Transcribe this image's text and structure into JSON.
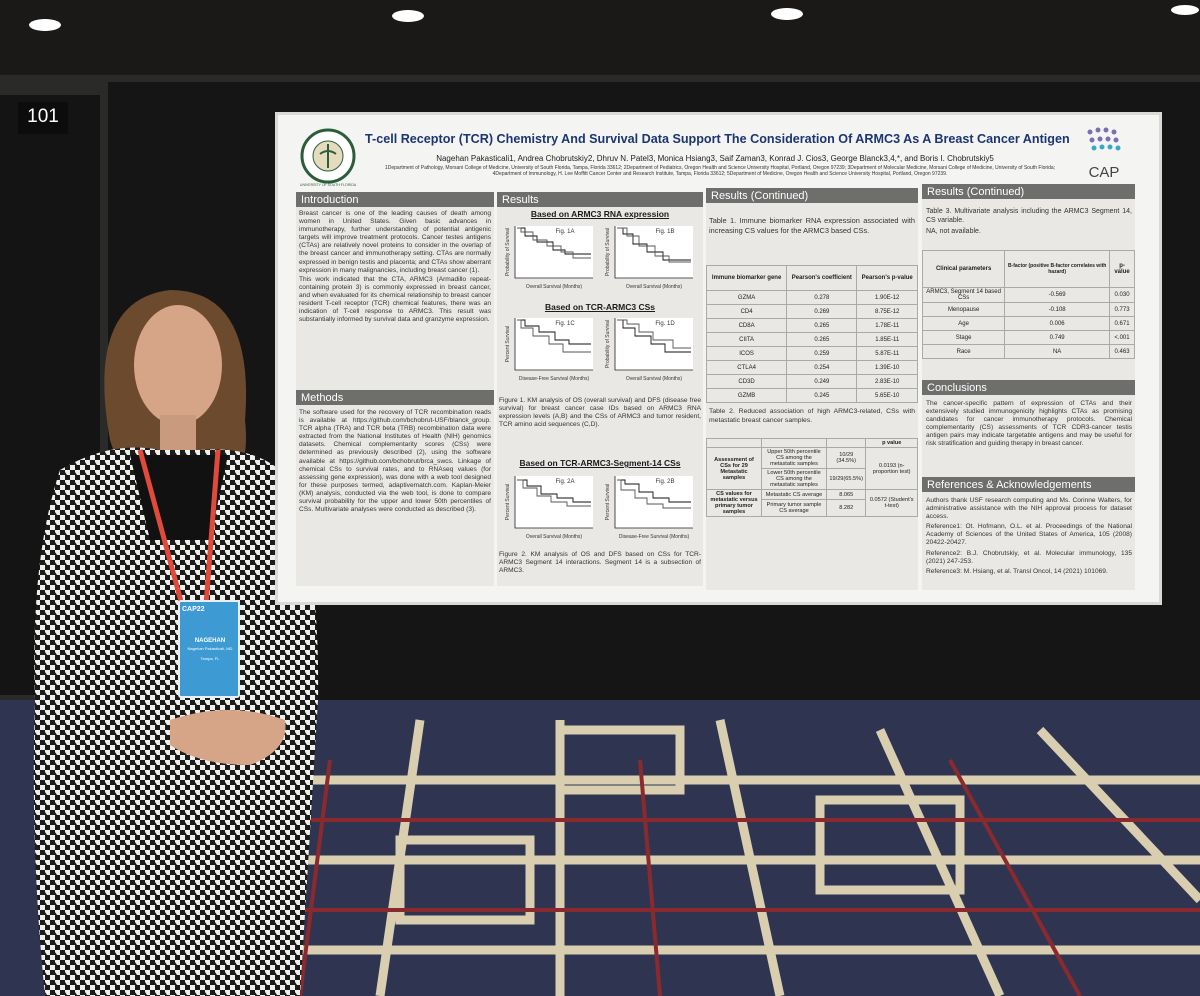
{
  "room_sign": "101",
  "poster": {
    "logo_left_text": "UNIVERSITY OF SOUTH FLORIDA",
    "logo_right_text": "CAP",
    "title": "T-cell Receptor (TCR) Chemistry And Survival Data Support The Consideration Of ARMC3 As A Breast Cancer Antigen",
    "authors": "Nagehan Pakasticali1, Andrea Chobrutskiy2, Dhruv N. Patel3, Monica Hsiang3, Saif Zaman3, Konrad J. Cios3, George Blanck3,4,*, and Boris I. Chobrutskiy5",
    "affiliations": "1Department of Pathology, Morsani College of Medicine, University of South Florida, Tampa, Florida 33612; 2Department of Pediatrics, Oregon Health and Science University Hospital, Portland, Oregon 97239; 3Department of Molecular Medicine, Morsani College of Medicine, University of South Florida; 4Department of Immunology, H. Lee Moffitt Cancer Center and Research Institute, Tampa, Florida 33612; 5Department of Medicine, Oregon Health and Science University Hospital, Portland, Oregon 97239.",
    "introduction": {
      "heading": "Introduction",
      "paragraphs": [
        "Breast cancer is one of the leading causes of death among women in United States. Given basic advances in immunotherapy, further understanding of potential antigenic targets will improve treatment protocols. Cancer testes antigens (CTAs) are relatively novel proteins to consider in the overlap of the breast cancer and immunotherapy setting. CTAs are normally expressed in benign testis and placenta; and CTAs show aberrant expression in many malignancies, including breast cancer (1).",
        "This work indicated that the CTA, ARMC3 (Armadillo repeat-containing protein 3) is commonly expressed in breast cancer, and when evaluated for its chemical relationship to breast cancer resident T-cell receptor (TCR) chemical features, there was an indication of T-cell response to ARMC3. This result was substantially informed by survival data and granzyme expression."
      ]
    },
    "methods": {
      "heading": "Methods",
      "text": "The software used for the recovery of TCR recombination reads is available at https://github.com/bchobrut-USF/blanck_group. TCR alpha (TRA) and TCR beta (TRB) recombination data were extracted from the National Institutes of Health (NIH) genomics datasets. Chemical complementarity scores (CSs) were determined as previously described (2), using the software available at https://github.com/bchobrut/brca_swcs. Linkage of chemical CSs to survival rates, and to RNAseq values (for assessing gene expression), was done with a web tool designed for these purposes termed, adaptivematch.com. Kaplan-Meier (KM) analysis, conducted via the web tool, is done to compare survival probability for the upper and lower 50th percentiles of CSs. Multivariate analyses were conducted as described (3)."
    },
    "results": {
      "heading": "Results",
      "subheadings": [
        "Based on ARMC3 RNA expression",
        "Based on TCR-ARMC3 CSs",
        "Based on TCR-ARMC3-Segment-14 CSs"
      ],
      "figures": [
        {
          "label": "Fig. 1A",
          "x_label": "Overall Survival (Months)",
          "y_label": "Probability of Survival"
        },
        {
          "label": "Fig. 1B",
          "x_label": "Overall Survival (Months)",
          "y_label": "Probability of Survival"
        },
        {
          "label": "Fig. 1C",
          "x_label": "Disease-Free Survival (Months)",
          "y_label": "Percent Survival"
        },
        {
          "label": "Fig. 1D",
          "x_label": "Overall Survival (Months)",
          "y_label": "Probability of Survival"
        },
        {
          "label": "Fig. 2A",
          "x_label": "Overall Survival (Months)",
          "y_label": "Percent Survival"
        },
        {
          "label": "Fig. 2B",
          "x_label": "Disease-Free Survival (Months)",
          "y_label": "Percent Survival"
        }
      ],
      "figure_1_caption": "Figure 1. KM analysis of OS (overall survival) and DFS (disease free survival) for breast cancer case IDs based on ARMC3 RNA expression levels (A,B) and the CSs of ARMC3 and tumor resident, TCR amino acid sequences (C,D).",
      "figure_2_caption": "Figure 2. KM analysis of OS and DFS based on CSs for TCR-ARMC3 Segment 14 interactions. Segment 14 is a subsection of ARMC3."
    },
    "results_continued_1": {
      "heading": "Results (Continued)",
      "table_1": {
        "caption": "Table 1. Immune biomarker RNA expression associated with increasing CS values for the ARMC3 based CSs.",
        "header": [
          "Immune biomarker gene",
          "Pearson's coefficient",
          "Pearson's p-value"
        ],
        "rows": [
          [
            "GZMA",
            "0.278",
            "1.90E-12"
          ],
          [
            "CD4",
            "0.269",
            "8.75E-12"
          ],
          [
            "CD8A",
            "0.265",
            "1.78E-11"
          ],
          [
            "CIITA",
            "0.265",
            "1.85E-11"
          ],
          [
            "ICOS",
            "0.259",
            "5.87E-11"
          ],
          [
            "CTLA4",
            "0.254",
            "1.39E-10"
          ],
          [
            "CD3D",
            "0.249",
            "2.83E-10"
          ],
          [
            "GZMB",
            "0.245",
            "5.65E-10"
          ]
        ]
      },
      "table_2": {
        "caption": "Table 2. Reduced association of high ARMC3-related, CSs with metastatic breast cancer samples.",
        "p_header": "p value",
        "groups": [
          {
            "label": "Assessment of CSs for 29 Metastatic samples",
            "p_value": "0.0193 (n-proportion test)",
            "rows": [
              [
                "Upper 50th percentile CS among the metastatic samples",
                "10/29 (34.5%)"
              ],
              [
                "Lower 50th percentile CS among the metastatic samples",
                "19/29(65.5%)"
              ]
            ]
          },
          {
            "label": "CS values for metastatic versus primary tumor samples",
            "p_value": "0.0572 (Student's t-test)",
            "rows": [
              [
                "Metastatic CS average",
                "8.065"
              ],
              [
                "Primary tumor sample CS average",
                "8.282"
              ]
            ]
          }
        ]
      }
    },
    "results_continued_2": {
      "heading": "Results (Continued)",
      "table_3": {
        "caption": "Table 3. Multivariate analysis including the ARMC3 Segment 14, CS variable.",
        "note": "NA, not available.",
        "header": [
          "Clinical parameters",
          "B-factor (positive B-factor correlates with hazard)",
          "p-value"
        ],
        "rows": [
          [
            "ARMC3, Segment 14 based CSs",
            "-0.569",
            "0.030"
          ],
          [
            "Menopause",
            "-0.108",
            "0.773"
          ],
          [
            "Age",
            "0.006",
            "0.671"
          ],
          [
            "Stage",
            "0.749",
            "<.001"
          ],
          [
            "Race",
            "NA",
            "0.463"
          ]
        ]
      }
    },
    "conclusions": {
      "heading": "Conclusions",
      "text": "The cancer-specific pattern of expression of CTAs and their extensively studied immunogenicity highlights CTAs as promising candidates for cancer immunotherapy protocols. Chemical complementarity (CS) assessments of TCR CDR3-cancer testis antigen pairs may indicate targetable antigens and may be useful for risk stratification and guiding therapy in breast cancer."
    },
    "references": {
      "heading": "References & Acknowledgements",
      "items": [
        "Authors thank USF research computing and Ms. Corinne Walters, for administrative assistance with the NIH approval process for dataset access.",
        "Reference1: Ot. Hofmann, O.L. et al. Proceedings of the National Academy of Sciences of the United States of America, 105 (2008) 20422-20427.",
        "Reference2: B.J. Chobrutskiy, et al. Molecular immunology, 135 (2021) 247-253.",
        "Reference3: M. Hsiang, et al. Transl Oncol, 14 (2021) 101069."
      ]
    }
  },
  "badge": {
    "event": "CAP22",
    "first_name": "NAGEHAN",
    "full_name": "Nagehan Pakasticali, MD",
    "city": "Tampa, FL"
  }
}
